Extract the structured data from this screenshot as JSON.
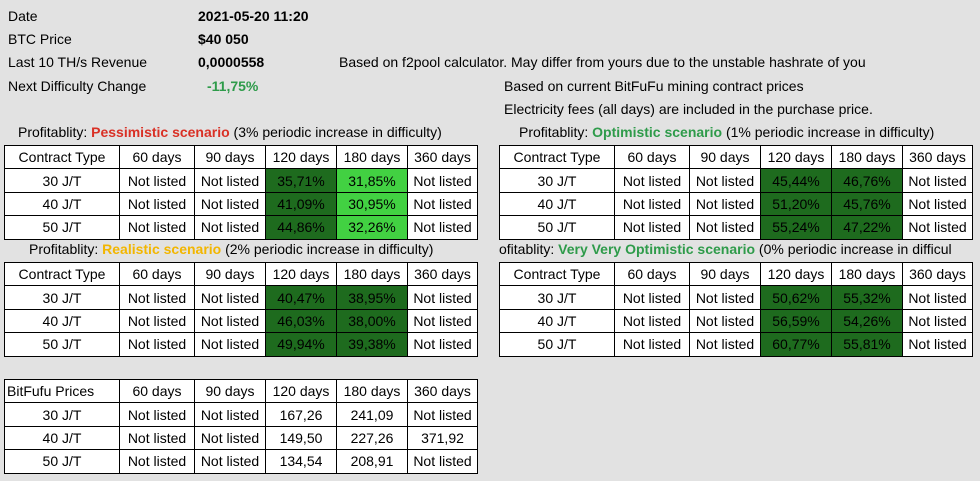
{
  "info": {
    "rows": [
      {
        "label": "Date",
        "value": "2021-05-20 11:20"
      },
      {
        "label": "BTC Price",
        "value": "$40 050"
      },
      {
        "label": "Last 10 TH/s Revenue",
        "value": "0,0000558"
      },
      {
        "label": "Next Difficulty Change",
        "value": "-11,75%"
      }
    ],
    "note1": "Based on f2pool calculator. May differ from yours due to the unstable hashrate of you",
    "note2": "Based on current BitFuFu mining contract prices",
    "note3": "Electricity fees (all days) are included in the purchase price."
  },
  "headers": [
    "Contract Type",
    "60 days",
    "90 days",
    "120 days",
    "180 days",
    "360 days"
  ],
  "pessimistic": {
    "prefix": "Profitablity: ",
    "name": "Pessimistic scenario",
    "suffix": " (3% periodic increase in difficulty)",
    "rows": [
      [
        "30 J/T",
        "Not listed",
        "Not listed",
        "35,71%",
        "31,85%",
        "Not listed"
      ],
      [
        "40 J/T",
        "Not listed",
        "Not listed",
        "41,09%",
        "30,95%",
        "Not listed"
      ],
      [
        "50 J/T",
        "Not listed",
        "Not listed",
        "44,86%",
        "32,26%",
        "Not listed"
      ]
    ]
  },
  "optimistic": {
    "prefix": "Profitablity: ",
    "name": "Optimistic scenario",
    "suffix": " (1% periodic increase in difficulty)",
    "rows": [
      [
        "30 J/T",
        "Not listed",
        "Not listed",
        "45,44%",
        "46,76%",
        "Not listed"
      ],
      [
        "40 J/T",
        "Not listed",
        "Not listed",
        "51,20%",
        "45,76%",
        "Not listed"
      ],
      [
        "50 J/T",
        "Not listed",
        "Not listed",
        "55,24%",
        "47,22%",
        "Not listed"
      ]
    ]
  },
  "realistic": {
    "prefix": "Profitablity: ",
    "name": "Realistic scenario",
    "suffix": " (2% periodic increase in difficulty)",
    "rows": [
      [
        "30 J/T",
        "Not listed",
        "Not listed",
        "40,47%",
        "38,95%",
        "Not listed"
      ],
      [
        "40 J/T",
        "Not listed",
        "Not listed",
        "46,03%",
        "38,00%",
        "Not listed"
      ],
      [
        "50 J/T",
        "Not listed",
        "Not listed",
        "49,94%",
        "39,38%",
        "Not listed"
      ]
    ]
  },
  "veryoptimistic": {
    "prefix": "ofitablity: ",
    "name": "Very Very Optimistic scenario",
    "suffix": " (0% periodic increase in difficul",
    "rows": [
      [
        "30 J/T",
        "Not listed",
        "Not listed",
        "50,62%",
        "55,32%",
        "Not listed"
      ],
      [
        "40 J/T",
        "Not listed",
        "Not listed",
        "56,59%",
        "54,26%",
        "Not listed"
      ],
      [
        "50 J/T",
        "Not listed",
        "Not listed",
        "60,77%",
        "55,81%",
        "Not listed"
      ]
    ]
  },
  "prices": {
    "headers": [
      "BitFufu Prices",
      "60 days",
      "90 days",
      "120 days",
      "180 days",
      "360 days"
    ],
    "rows": [
      [
        "30 J/T",
        "Not listed",
        "Not listed",
        "167,26",
        "241,09",
        "Not listed"
      ],
      [
        "40 J/T",
        "Not listed",
        "Not listed",
        "149,50",
        "227,26",
        "371,92"
      ],
      [
        "50 J/T",
        "Not listed",
        "Not listed",
        "134,54",
        "208,91",
        "Not listed"
      ]
    ]
  },
  "colors": {
    "pessimistic": "#d93025",
    "optimistic": "#2e9b4a",
    "realistic": "#f2b600",
    "dark_cell": "#1e6b1e",
    "light_cell": "#42d142"
  }
}
